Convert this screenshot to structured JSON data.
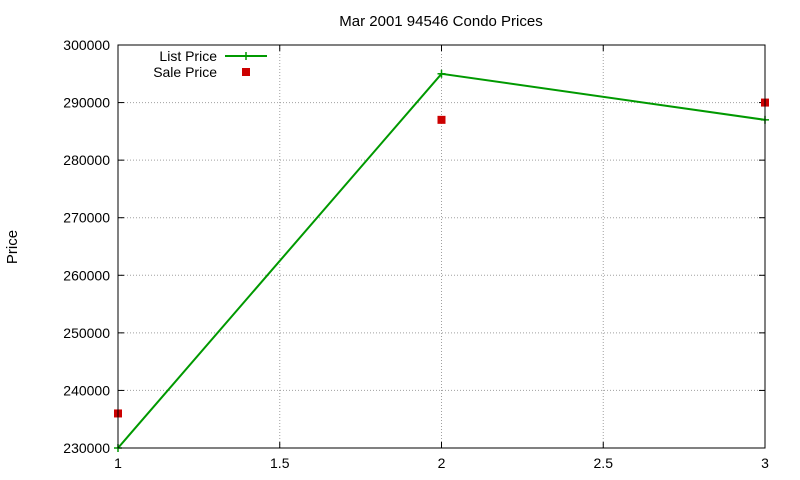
{
  "chart_data": {
    "type": "line",
    "title": "Mar 2001 94546 Condo Prices",
    "xlabel": "",
    "ylabel": "Price",
    "xlim": [
      1,
      3
    ],
    "ylim": [
      230000,
      300000
    ],
    "x_ticks": [
      "1",
      "1.5",
      "2",
      "2.5",
      "3"
    ],
    "y_ticks": [
      "230000",
      "240000",
      "250000",
      "260000",
      "270000",
      "280000",
      "290000",
      "300000"
    ],
    "grid": true,
    "legend_position": "top-left",
    "series": [
      {
        "name": "List Price",
        "style": "linespoints",
        "color": "#009900",
        "marker": "plus",
        "x": [
          1,
          2,
          3
        ],
        "y": [
          230000,
          295000,
          287000
        ]
      },
      {
        "name": "Sale Price",
        "style": "points",
        "color": "#cc0000",
        "marker": "square",
        "x": [
          1,
          2,
          3
        ],
        "y": [
          236000,
          287000,
          290000
        ]
      }
    ]
  }
}
